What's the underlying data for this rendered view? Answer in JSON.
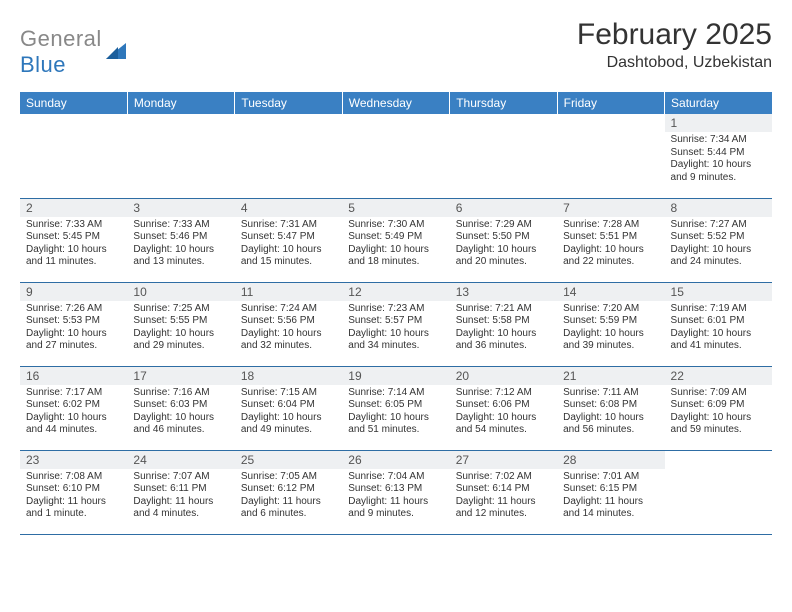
{
  "logo": {
    "text1": "General",
    "text2": "Blue"
  },
  "title": "February 2025",
  "location": "Dashtobod, Uzbekistan",
  "colors": {
    "header_bg": "#3a80c3",
    "header_text": "#ffffff",
    "border": "#2e6da4",
    "daynum_bg": "#eef0f2",
    "logo_gray": "#888888",
    "logo_blue": "#2e77bb"
  },
  "day_headers": [
    "Sunday",
    "Monday",
    "Tuesday",
    "Wednesday",
    "Thursday",
    "Friday",
    "Saturday"
  ],
  "weeks": [
    [
      {
        "n": "",
        "sr": "",
        "ss": "",
        "dl": ""
      },
      {
        "n": "",
        "sr": "",
        "ss": "",
        "dl": ""
      },
      {
        "n": "",
        "sr": "",
        "ss": "",
        "dl": ""
      },
      {
        "n": "",
        "sr": "",
        "ss": "",
        "dl": ""
      },
      {
        "n": "",
        "sr": "",
        "ss": "",
        "dl": ""
      },
      {
        "n": "",
        "sr": "",
        "ss": "",
        "dl": ""
      },
      {
        "n": "1",
        "sr": "Sunrise: 7:34 AM",
        "ss": "Sunset: 5:44 PM",
        "dl": "Daylight: 10 hours and 9 minutes."
      }
    ],
    [
      {
        "n": "2",
        "sr": "Sunrise: 7:33 AM",
        "ss": "Sunset: 5:45 PM",
        "dl": "Daylight: 10 hours and 11 minutes."
      },
      {
        "n": "3",
        "sr": "Sunrise: 7:33 AM",
        "ss": "Sunset: 5:46 PM",
        "dl": "Daylight: 10 hours and 13 minutes."
      },
      {
        "n": "4",
        "sr": "Sunrise: 7:31 AM",
        "ss": "Sunset: 5:47 PM",
        "dl": "Daylight: 10 hours and 15 minutes."
      },
      {
        "n": "5",
        "sr": "Sunrise: 7:30 AM",
        "ss": "Sunset: 5:49 PM",
        "dl": "Daylight: 10 hours and 18 minutes."
      },
      {
        "n": "6",
        "sr": "Sunrise: 7:29 AM",
        "ss": "Sunset: 5:50 PM",
        "dl": "Daylight: 10 hours and 20 minutes."
      },
      {
        "n": "7",
        "sr": "Sunrise: 7:28 AM",
        "ss": "Sunset: 5:51 PM",
        "dl": "Daylight: 10 hours and 22 minutes."
      },
      {
        "n": "8",
        "sr": "Sunrise: 7:27 AM",
        "ss": "Sunset: 5:52 PM",
        "dl": "Daylight: 10 hours and 24 minutes."
      }
    ],
    [
      {
        "n": "9",
        "sr": "Sunrise: 7:26 AM",
        "ss": "Sunset: 5:53 PM",
        "dl": "Daylight: 10 hours and 27 minutes."
      },
      {
        "n": "10",
        "sr": "Sunrise: 7:25 AM",
        "ss": "Sunset: 5:55 PM",
        "dl": "Daylight: 10 hours and 29 minutes."
      },
      {
        "n": "11",
        "sr": "Sunrise: 7:24 AM",
        "ss": "Sunset: 5:56 PM",
        "dl": "Daylight: 10 hours and 32 minutes."
      },
      {
        "n": "12",
        "sr": "Sunrise: 7:23 AM",
        "ss": "Sunset: 5:57 PM",
        "dl": "Daylight: 10 hours and 34 minutes."
      },
      {
        "n": "13",
        "sr": "Sunrise: 7:21 AM",
        "ss": "Sunset: 5:58 PM",
        "dl": "Daylight: 10 hours and 36 minutes."
      },
      {
        "n": "14",
        "sr": "Sunrise: 7:20 AM",
        "ss": "Sunset: 5:59 PM",
        "dl": "Daylight: 10 hours and 39 minutes."
      },
      {
        "n": "15",
        "sr": "Sunrise: 7:19 AM",
        "ss": "Sunset: 6:01 PM",
        "dl": "Daylight: 10 hours and 41 minutes."
      }
    ],
    [
      {
        "n": "16",
        "sr": "Sunrise: 7:17 AM",
        "ss": "Sunset: 6:02 PM",
        "dl": "Daylight: 10 hours and 44 minutes."
      },
      {
        "n": "17",
        "sr": "Sunrise: 7:16 AM",
        "ss": "Sunset: 6:03 PM",
        "dl": "Daylight: 10 hours and 46 minutes."
      },
      {
        "n": "18",
        "sr": "Sunrise: 7:15 AM",
        "ss": "Sunset: 6:04 PM",
        "dl": "Daylight: 10 hours and 49 minutes."
      },
      {
        "n": "19",
        "sr": "Sunrise: 7:14 AM",
        "ss": "Sunset: 6:05 PM",
        "dl": "Daylight: 10 hours and 51 minutes."
      },
      {
        "n": "20",
        "sr": "Sunrise: 7:12 AM",
        "ss": "Sunset: 6:06 PM",
        "dl": "Daylight: 10 hours and 54 minutes."
      },
      {
        "n": "21",
        "sr": "Sunrise: 7:11 AM",
        "ss": "Sunset: 6:08 PM",
        "dl": "Daylight: 10 hours and 56 minutes."
      },
      {
        "n": "22",
        "sr": "Sunrise: 7:09 AM",
        "ss": "Sunset: 6:09 PM",
        "dl": "Daylight: 10 hours and 59 minutes."
      }
    ],
    [
      {
        "n": "23",
        "sr": "Sunrise: 7:08 AM",
        "ss": "Sunset: 6:10 PM",
        "dl": "Daylight: 11 hours and 1 minute."
      },
      {
        "n": "24",
        "sr": "Sunrise: 7:07 AM",
        "ss": "Sunset: 6:11 PM",
        "dl": "Daylight: 11 hours and 4 minutes."
      },
      {
        "n": "25",
        "sr": "Sunrise: 7:05 AM",
        "ss": "Sunset: 6:12 PM",
        "dl": "Daylight: 11 hours and 6 minutes."
      },
      {
        "n": "26",
        "sr": "Sunrise: 7:04 AM",
        "ss": "Sunset: 6:13 PM",
        "dl": "Daylight: 11 hours and 9 minutes."
      },
      {
        "n": "27",
        "sr": "Sunrise: 7:02 AM",
        "ss": "Sunset: 6:14 PM",
        "dl": "Daylight: 11 hours and 12 minutes."
      },
      {
        "n": "28",
        "sr": "Sunrise: 7:01 AM",
        "ss": "Sunset: 6:15 PM",
        "dl": "Daylight: 11 hours and 14 minutes."
      },
      {
        "n": "",
        "sr": "",
        "ss": "",
        "dl": ""
      }
    ]
  ]
}
